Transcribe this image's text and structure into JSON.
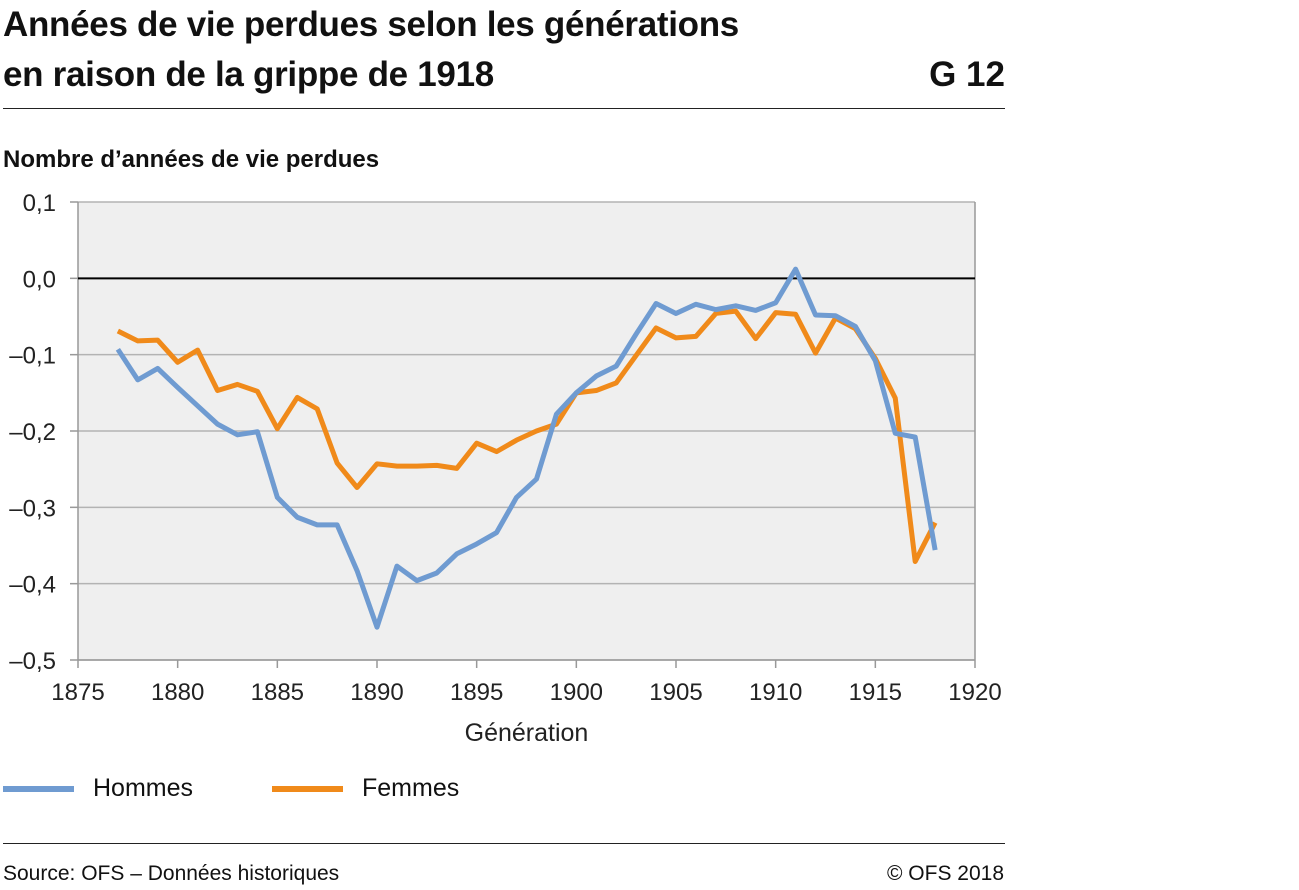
{
  "header": {
    "title_line1": "Années de vie perdues selon les générations",
    "title_line2": "en raison de la grippe de 1918",
    "code": "G 12"
  },
  "footer": {
    "source": "Source: OFS – Données historiques",
    "copyright": "© OFS 2018"
  },
  "chart_data": {
    "type": "line",
    "title": "Années de vie perdues selon les générations en raison de la grippe de 1918",
    "ylabel": "Nombre d’années de vie perdues",
    "xlabel": "Génération",
    "xlim": [
      1875,
      1920
    ],
    "ylim": [
      -0.5,
      0.1
    ],
    "xticks": [
      1875,
      1880,
      1885,
      1890,
      1895,
      1900,
      1905,
      1910,
      1915,
      1920
    ],
    "xtick_labels": [
      "1875",
      "1880",
      "1885",
      "1890",
      "1895",
      "1900",
      "1905",
      "1910",
      "1915",
      "1920"
    ],
    "yticks": [
      0.1,
      0.0,
      -0.1,
      -0.2,
      -0.3,
      -0.4,
      -0.5
    ],
    "ytick_labels": [
      "0,1",
      "0,0",
      "–0,1",
      "–0,2",
      "–0,3",
      "–0,4",
      "–0,5"
    ],
    "grid": true,
    "legend_position": "bottom",
    "x": [
      1877,
      1878,
      1879,
      1880,
      1881,
      1882,
      1883,
      1884,
      1885,
      1886,
      1887,
      1888,
      1889,
      1890,
      1891,
      1892,
      1893,
      1894,
      1895,
      1896,
      1897,
      1898,
      1899,
      1900,
      1901,
      1902,
      1903,
      1904,
      1905,
      1906,
      1907,
      1908,
      1909,
      1910,
      1911,
      1912,
      1913,
      1914,
      1915,
      1916,
      1917,
      1918
    ],
    "series": [
      {
        "name": "Hommes",
        "color": "#6f9bd1",
        "values": [
          -0.093,
          -0.133,
          -0.118,
          -0.143,
          -0.167,
          -0.191,
          -0.205,
          -0.201,
          -0.287,
          -0.313,
          -0.323,
          -0.323,
          -0.383,
          -0.457,
          -0.377,
          -0.396,
          -0.386,
          -0.361,
          -0.348,
          -0.333,
          -0.287,
          -0.263,
          -0.178,
          -0.15,
          -0.128,
          -0.115,
          -0.073,
          -0.033,
          -0.046,
          -0.034,
          -0.041,
          -0.036,
          -0.042,
          -0.032,
          0.012,
          -0.048,
          -0.049,
          -0.063,
          -0.108,
          -0.203,
          -0.208,
          -0.356
        ]
      },
      {
        "name": "Femmes",
        "color": "#f08a1a",
        "values": [
          -0.069,
          -0.082,
          -0.081,
          -0.11,
          -0.094,
          -0.147,
          -0.139,
          -0.148,
          -0.197,
          -0.156,
          -0.171,
          -0.242,
          -0.274,
          -0.243,
          -0.246,
          -0.246,
          -0.245,
          -0.249,
          -0.216,
          -0.227,
          -0.212,
          -0.2,
          -0.191,
          -0.15,
          -0.147,
          -0.137,
          -0.101,
          -0.065,
          -0.078,
          -0.076,
          -0.046,
          -0.043,
          -0.079,
          -0.045,
          -0.047,
          -0.098,
          -0.052,
          -0.066,
          -0.105,
          -0.157,
          -0.371,
          -0.32
        ]
      }
    ]
  }
}
